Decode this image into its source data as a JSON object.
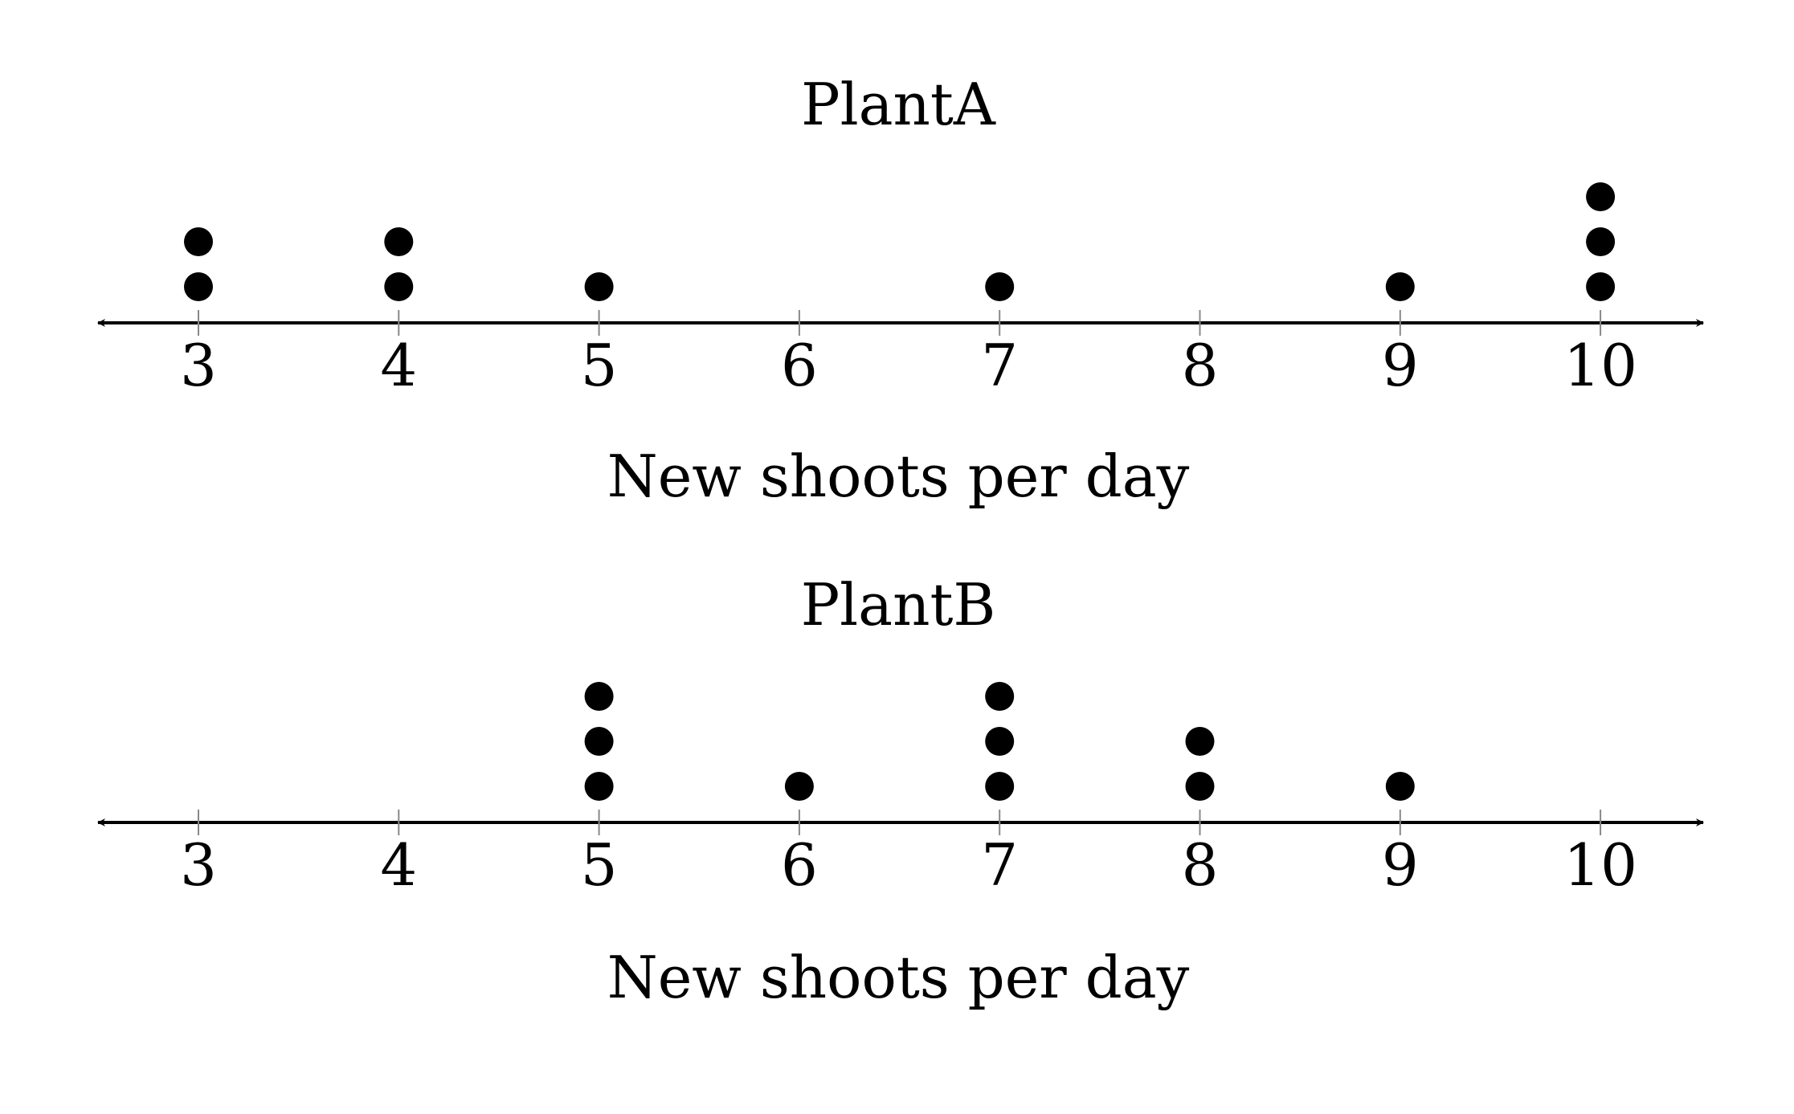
{
  "chart_data": [
    {
      "type": "dot_plot",
      "title": "PlantA",
      "xlabel": "New shoots per day",
      "ticks": [
        3,
        4,
        5,
        6,
        7,
        8,
        9,
        10
      ],
      "tick_labels": [
        "3",
        "4",
        "5",
        "6",
        "7",
        "8",
        "9",
        "10"
      ],
      "xlim": [
        3,
        10
      ],
      "counts": [
        {
          "x": 3,
          "count": 2
        },
        {
          "x": 4,
          "count": 2
        },
        {
          "x": 5,
          "count": 1
        },
        {
          "x": 6,
          "count": 0
        },
        {
          "x": 7,
          "count": 1
        },
        {
          "x": 8,
          "count": 0
        },
        {
          "x": 9,
          "count": 1
        },
        {
          "x": 10,
          "count": 3
        }
      ],
      "grid": false
    },
    {
      "type": "dot_plot",
      "title": "PlantB",
      "xlabel": "New shoots per day",
      "ticks": [
        3,
        4,
        5,
        6,
        7,
        8,
        9,
        10
      ],
      "tick_labels": [
        "3",
        "4",
        "5",
        "6",
        "7",
        "8",
        "9",
        "10"
      ],
      "xlim": [
        3,
        10
      ],
      "counts": [
        {
          "x": 3,
          "count": 0
        },
        {
          "x": 4,
          "count": 0
        },
        {
          "x": 5,
          "count": 3
        },
        {
          "x": 6,
          "count": 1
        },
        {
          "x": 7,
          "count": 3
        },
        {
          "x": 8,
          "count": 2
        },
        {
          "x": 9,
          "count": 1
        },
        {
          "x": 10,
          "count": 0
        }
      ],
      "grid": false
    }
  ],
  "colors": {
    "dot": "#000000",
    "axis": "#000000",
    "tick": "#888888"
  }
}
